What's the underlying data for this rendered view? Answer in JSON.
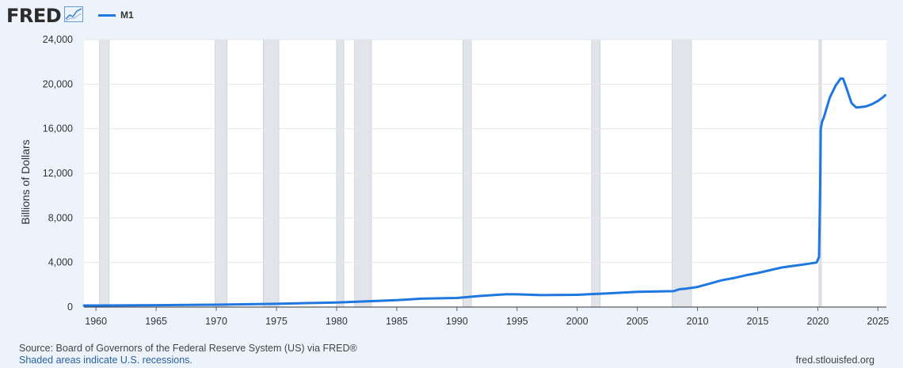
{
  "header": {
    "logo_text": "FRED",
    "logo_icon": "line-graph-icon"
  },
  "legend": {
    "label": "M1",
    "color": "#1f77e0"
  },
  "footer": {
    "source": "Source: Board of Governors of the Federal Reserve System (US) via FRED®",
    "recessions_note": "Shaded areas indicate U.S. recessions.",
    "site": "fred.stlouisfed.org"
  },
  "chart_data": {
    "type": "line",
    "title": "M1",
    "xlabel": "",
    "ylabel": "Billions of Dollars",
    "xlim": [
      1959,
      2025.7
    ],
    "ylim": [
      0,
      24000
    ],
    "x_ticks": [
      1960,
      1965,
      1970,
      1975,
      1980,
      1985,
      1990,
      1995,
      2000,
      2005,
      2010,
      2015,
      2020,
      2025
    ],
    "y_ticks": [
      0,
      4000,
      8000,
      12000,
      16000,
      20000,
      24000
    ],
    "y_tick_labels": [
      "0",
      "4,000",
      "8,000",
      "12,000",
      "16,000",
      "20,000",
      "24,000"
    ],
    "recessions": [
      [
        1960.3,
        1961.1
      ],
      [
        1969.9,
        1970.9
      ],
      [
        1973.9,
        1975.2
      ],
      [
        1980.0,
        1980.6
      ],
      [
        1981.5,
        1982.9
      ],
      [
        1990.5,
        1991.2
      ],
      [
        2001.2,
        2001.9
      ],
      [
        2007.9,
        2009.5
      ],
      [
        2020.1,
        2020.3
      ]
    ],
    "series": [
      {
        "name": "M1",
        "color": "#1f77e0",
        "x": [
          1959,
          1960,
          1965,
          1970,
          1975,
          1980,
          1985,
          1987,
          1990,
          1992,
          1994,
          1995,
          1997,
          2000,
          2001,
          2002,
          2005,
          2008,
          2008.5,
          2009,
          2010,
          2011,
          2012,
          2013,
          2014,
          2015,
          2016,
          2017,
          2018,
          2019,
          2019.9,
          2020.1,
          2020.2,
          2020.25,
          2020.35,
          2020.5,
          2021.0,
          2021.5,
          2021.9,
          2022.1,
          2022.4,
          2022.8,
          2023.2,
          2023.6,
          2024.0,
          2024.5,
          2025.0,
          2025.4,
          2025.6
        ],
        "values": [
          140,
          140,
          170,
          215,
          290,
          410,
          620,
          750,
          820,
          1000,
          1140,
          1140,
          1070,
          1100,
          1150,
          1200,
          1370,
          1430,
          1600,
          1650,
          1800,
          2100,
          2400,
          2600,
          2850,
          3050,
          3300,
          3550,
          3700,
          3850,
          4000,
          4500,
          11000,
          16000,
          16600,
          17000,
          18800,
          19900,
          20500,
          20500,
          19600,
          18300,
          17900,
          17950,
          18000,
          18200,
          18500,
          18800,
          19000
        ]
      }
    ]
  }
}
